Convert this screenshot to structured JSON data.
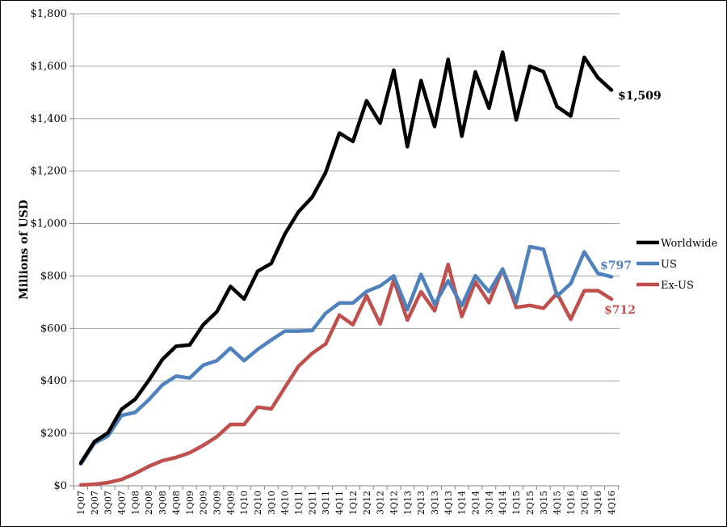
{
  "chart_data": {
    "type": "line",
    "title": "",
    "xlabel": "",
    "ylabel": "Millions of USD",
    "ylim": [
      0,
      1800
    ],
    "y_ticks": [
      0,
      200,
      400,
      600,
      800,
      1000,
      1200,
      1400,
      1600,
      1800
    ],
    "y_tick_labels": [
      "$0",
      "$200",
      "$400",
      "$600",
      "$800",
      "$1,000",
      "$1,200",
      "$1,400",
      "$1,600",
      "$1,800"
    ],
    "grid": true,
    "legend_position": "right",
    "categories": [
      "1Q07",
      "2Q07",
      "3Q07",
      "4Q07",
      "1Q08",
      "2Q08",
      "3Q08",
      "4Q08",
      "1Q09",
      "2Q09",
      "3Q09",
      "4Q09",
      "1Q10",
      "2Q10",
      "3Q10",
      "4Q10",
      "1Q11",
      "2Q11",
      "3Q11",
      "4Q11",
      "1Q12",
      "2Q12",
      "3Q12",
      "4Q12",
      "1Q13",
      "2Q13",
      "3Q13",
      "4Q13",
      "1Q14",
      "2Q14",
      "3Q14",
      "4Q14",
      "1Q15",
      "2Q15",
      "3Q15",
      "4Q15",
      "1Q16",
      "2Q16",
      "3Q16",
      "4Q16"
    ],
    "series": [
      {
        "name": "Worldwide",
        "color": "#000000",
        "end_label": "$1,509",
        "values": [
          87,
          168,
          202,
          292,
          330,
          402,
          482,
          532,
          537,
          614,
          664,
          760,
          712,
          818,
          848,
          960,
          1045,
          1100,
          1195,
          1345,
          1313,
          1468,
          1383,
          1585,
          1293,
          1545,
          1370,
          1626,
          1333,
          1578,
          1440,
          1654,
          1395,
          1600,
          1579,
          1446,
          1410,
          1634,
          1556,
          1509
        ]
      },
      {
        "name": "US",
        "color": "#4f81bd",
        "end_label": "$797",
        "values": [
          83,
          162,
          190,
          268,
          280,
          328,
          385,
          418,
          411,
          460,
          477,
          525,
          477,
          520,
          556,
          590,
          590,
          592,
          658,
          697,
          697,
          741,
          762,
          800,
          672,
          806,
          692,
          782,
          687,
          801,
          740,
          826,
          700,
          912,
          902,
          723,
          771,
          892,
          810,
          797
        ]
      },
      {
        "name": "Ex-US",
        "color": "#c0504d",
        "end_label": "$712",
        "values": [
          3,
          6,
          12,
          24,
          47,
          74,
          96,
          108,
          126,
          154,
          187,
          234,
          234,
          300,
          293,
          375,
          456,
          505,
          541,
          651,
          614,
          725,
          617,
          785,
          632,
          740,
          667,
          844,
          645,
          778,
          698,
          827,
          680,
          688,
          677,
          734,
          635,
          744,
          744,
          712
        ]
      }
    ]
  }
}
